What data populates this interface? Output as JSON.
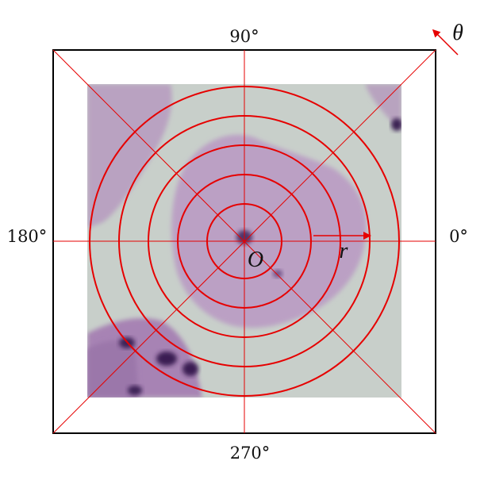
{
  "diagram": {
    "labels": {
      "top": "90°",
      "bottom": "270°",
      "left": "180°",
      "right": "0°",
      "origin": "O",
      "radius": "r",
      "angle": "θ"
    },
    "ring_count": 5,
    "colors": {
      "overlay": "#e60000",
      "frame": "#000000",
      "background_slide": "#c6cdc8",
      "cell_cytoplasm": "#b89bbd",
      "nucleus": "#4a2a5e"
    }
  }
}
